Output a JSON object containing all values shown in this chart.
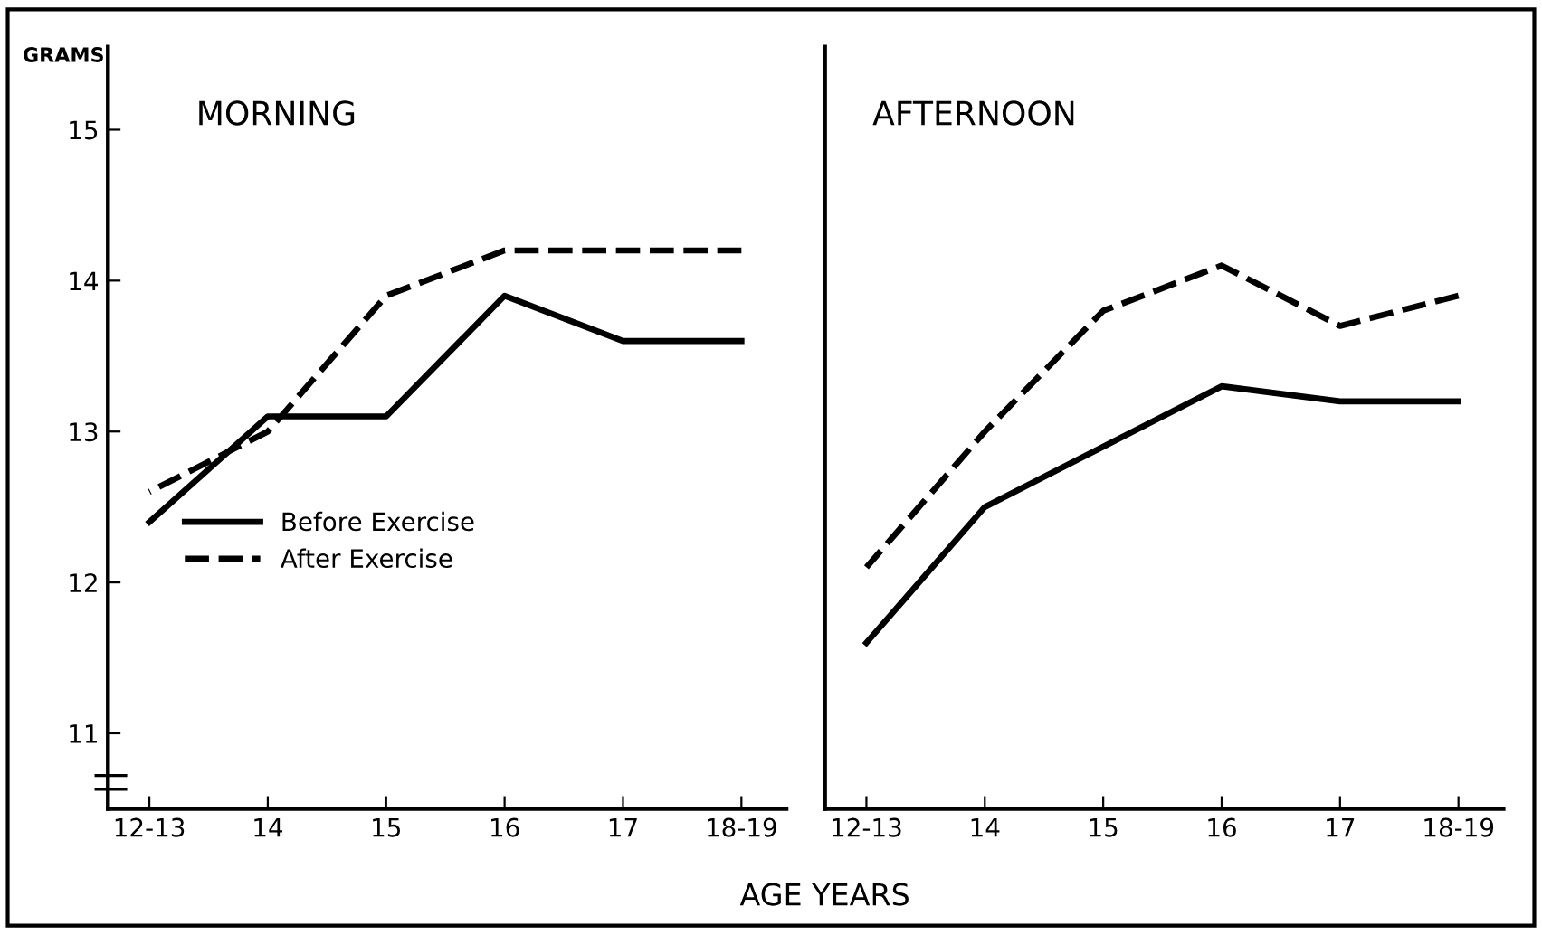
{
  "chart_data": [
    {
      "type": "line",
      "title": "MORNING",
      "ylabel": "GRAMS",
      "xlabel": "AGE YEARS",
      "categories": [
        "12-13",
        "14",
        "15",
        "16",
        "17",
        "18-19"
      ],
      "series": [
        {
          "name": "Before Exercise",
          "color": "#000000",
          "line_style": "solid",
          "values": [
            12.4,
            13.1,
            13.1,
            13.9,
            13.6,
            13.6
          ]
        },
        {
          "name": "After Exercise",
          "color": "#000000",
          "line_style": "dashed",
          "values": [
            12.6,
            13.0,
            13.9,
            14.2,
            14.2,
            14.2
          ]
        }
      ],
      "ylim": [
        10.5,
        15.55
      ],
      "yticks": [
        11,
        12,
        13,
        14,
        15
      ],
      "grid": false,
      "legend": "bottom left",
      "marker": "none"
    },
    {
      "type": "line",
      "title": "AFTERNOON",
      "categories": [
        "12-13",
        "14",
        "15",
        "16",
        "17",
        "18-19"
      ],
      "series": [
        {
          "color": "#000000",
          "line_style": "solid",
          "values": [
            11.6,
            12.5,
            12.9,
            13.3,
            13.2,
            13.2
          ]
        },
        {
          "color": "#000000",
          "line_style": "dashed",
          "values": [
            12.1,
            13.0,
            13.8,
            14.1,
            13.7,
            13.9
          ]
        }
      ],
      "ylim": [
        10.5,
        15.55
      ],
      "yticks": [
        11,
        12,
        13,
        14,
        15
      ],
      "grid": false,
      "tick_labels": "x",
      "marker": "none"
    }
  ]
}
